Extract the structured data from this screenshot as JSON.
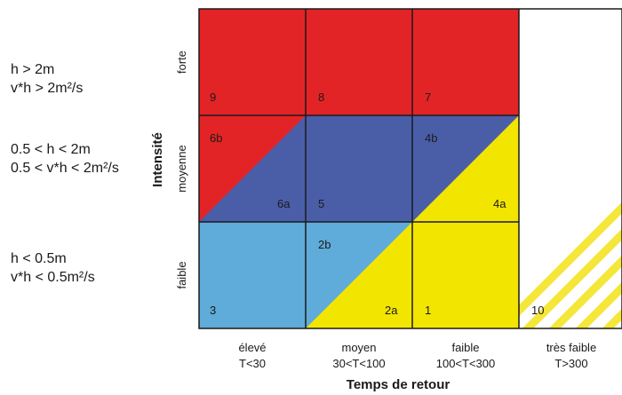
{
  "conditions": [
    {
      "line1": "h > 2m",
      "line2": "v*h > 2m²/s"
    },
    {
      "line1": "0.5 < h < 2m",
      "line2": "0.5 < v*h < 2m²/s"
    },
    {
      "line1": "h < 0.5m",
      "line2": "v*h < 0.5m²/s"
    }
  ],
  "y_axis": {
    "title": "Intensité",
    "levels": [
      "forte",
      "moyenne",
      "faible"
    ]
  },
  "x_axis": {
    "title": "Temps de retour",
    "columns": [
      {
        "label": "élevé",
        "range": "T<30"
      },
      {
        "label": "moyen",
        "range": "30<T<100"
      },
      {
        "label": "faible",
        "range": "100<T<300"
      },
      {
        "label": "très faible",
        "range": "T>300"
      }
    ]
  },
  "cells": {
    "r0c0": "9",
    "r0c1": "8",
    "r0c2": "7",
    "r1c0_upper": "6b",
    "r1c0_lower": "6a",
    "r1c1": "5",
    "r1c2_upper": "4b",
    "r1c2_lower": "4a",
    "r2c0": "3",
    "r2c1_upper": "2b",
    "r2c1_lower": "2a",
    "r2c2": "1",
    "r2c3": "10"
  },
  "colors": {
    "red": "#e32426",
    "dark_blue": "#4a5ea8",
    "light_blue": "#5fabd9",
    "yellow": "#f2e500",
    "hatch_yellow": "#f5e63a",
    "border": "#1a1a1a"
  }
}
